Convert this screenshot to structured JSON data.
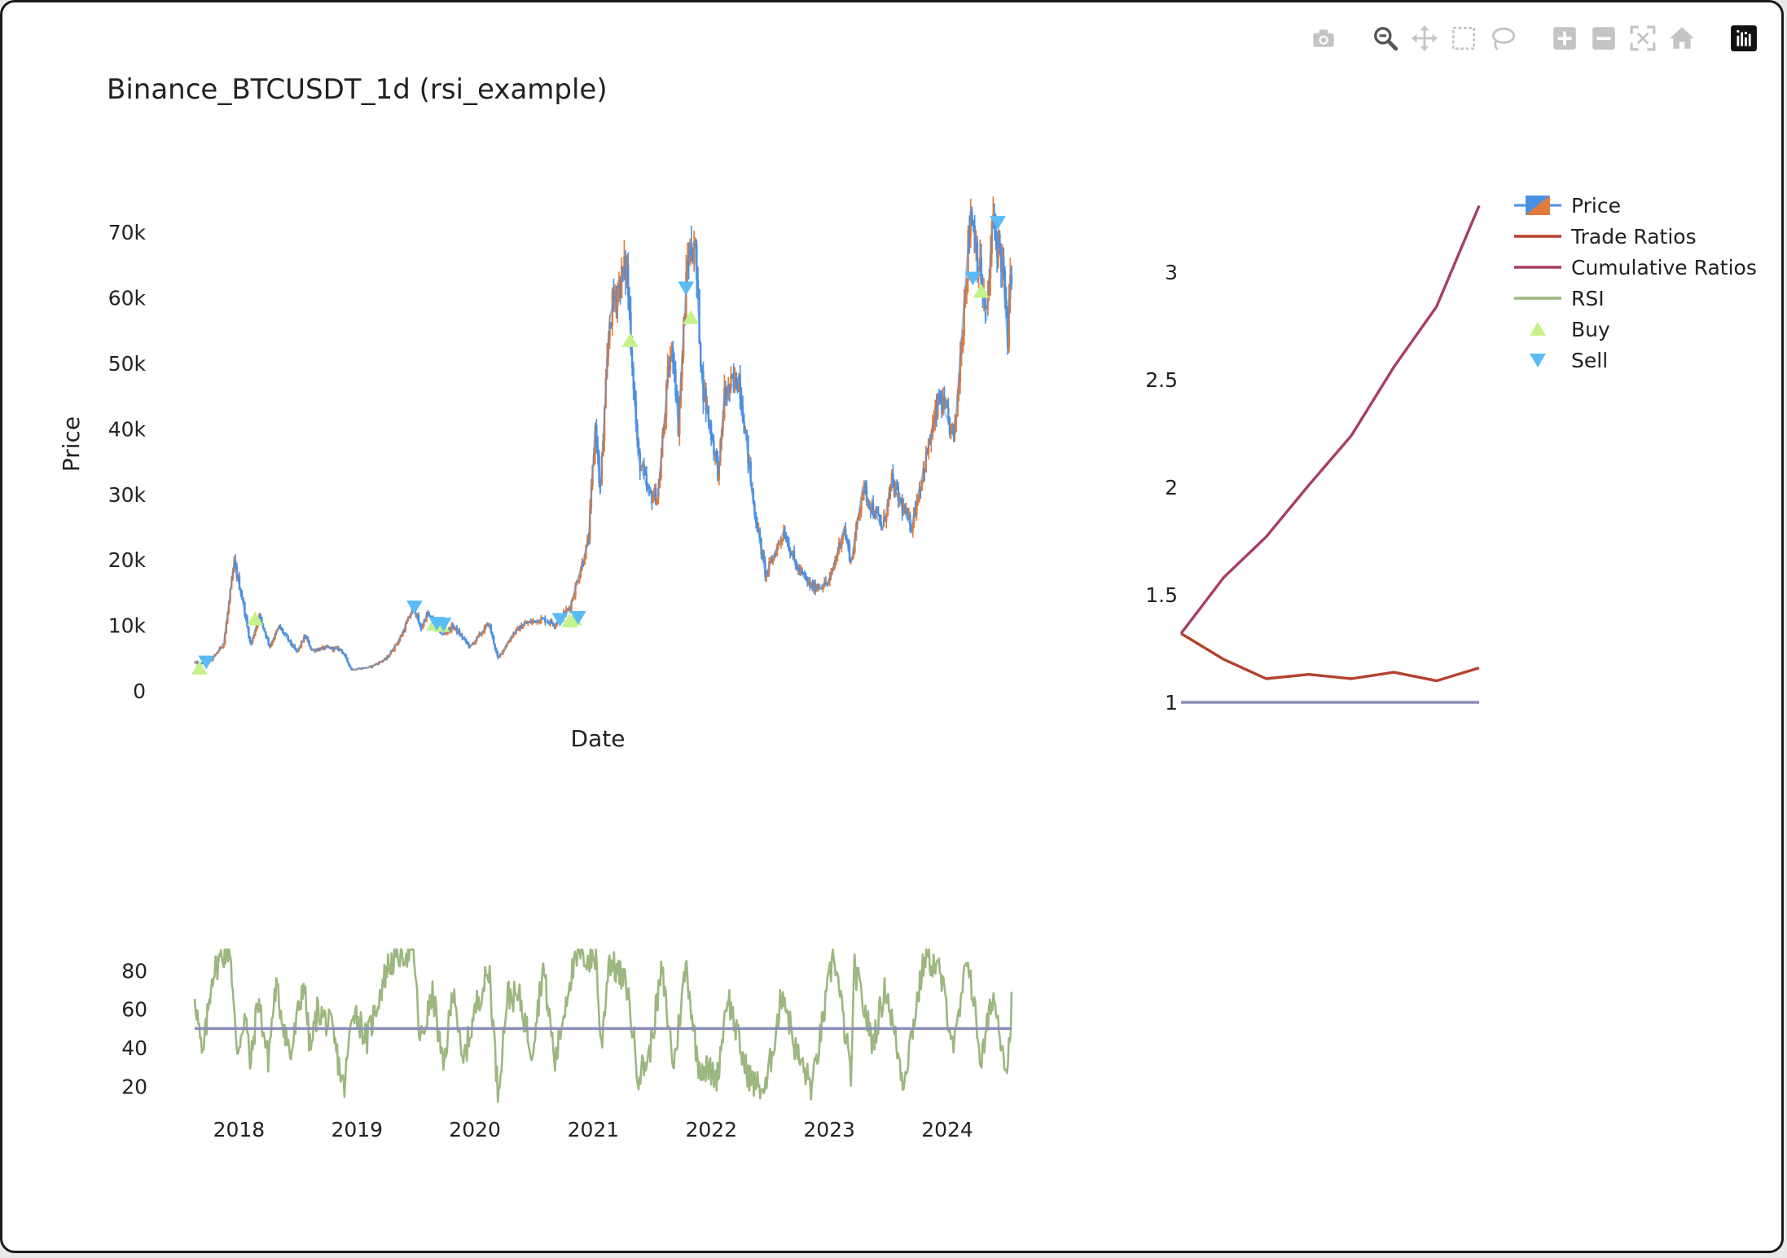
{
  "modebar": {
    "buttons": [
      {
        "name": "camera-icon",
        "title": "Download plot as a png"
      },
      {
        "name": "zoom-icon",
        "title": "Zoom"
      },
      {
        "name": "pan-icon",
        "title": "Pan"
      },
      {
        "name": "box-select-icon",
        "title": "Box Select"
      },
      {
        "name": "lasso-select-icon",
        "title": "Lasso Select"
      },
      {
        "name": "zoom-in-icon",
        "title": "Zoom in"
      },
      {
        "name": "zoom-out-icon",
        "title": "Zoom out"
      },
      {
        "name": "autoscale-icon",
        "title": "Autoscale"
      },
      {
        "name": "reset-axes-icon",
        "title": "Reset axes"
      },
      {
        "name": "plotly-logo-icon",
        "title": "Produced with Plotly"
      }
    ],
    "active": "zoom-icon"
  },
  "colors": {
    "price_up": "#e07b39",
    "price_down": "#4a90e2",
    "trade_ratios": "#b5412e",
    "cumulative_ratios": "#a83e63",
    "rsi": "#9cb77f",
    "rsi_midline": "#8a8fb8",
    "ratio_baseline": "#8a8fb8",
    "buy": "#c5f28b",
    "sell": "#5bbcf5"
  },
  "chart_data": [
    {
      "type": "candlestick",
      "id": "price",
      "title": "Binance_BTCUSDT_1d (rsi_example)",
      "xlabel": "Date",
      "ylabel": "Price",
      "xlim": [
        "2017-08-17",
        "2024-07-18"
      ],
      "ylim": [
        0,
        74000
      ],
      "yticks": [
        0,
        10000,
        20000,
        30000,
        40000,
        50000,
        60000,
        70000
      ],
      "ytick_labels": [
        "0",
        "10k",
        "20k",
        "30k",
        "40k",
        "50k",
        "60k",
        "70k"
      ],
      "series": [
        {
          "name": "Price",
          "kind": "candlestick",
          "points": [
            [
              "2017-08-17",
              4300
            ],
            [
              "2017-09-10",
              4200
            ],
            [
              "2017-10-10",
              4800
            ],
            [
              "2017-11-15",
              7300
            ],
            [
              "2017-12-17",
              19500
            ],
            [
              "2018-01-10",
              14500
            ],
            [
              "2018-02-06",
              6900
            ],
            [
              "2018-03-05",
              11500
            ],
            [
              "2018-04-06",
              6800
            ],
            [
              "2018-05-05",
              9800
            ],
            [
              "2018-06-29",
              5900
            ],
            [
              "2018-07-25",
              8400
            ],
            [
              "2018-08-14",
              6200
            ],
            [
              "2018-09-30",
              6600
            ],
            [
              "2018-11-14",
              6300
            ],
            [
              "2018-12-15",
              3250
            ],
            [
              "2019-02-08",
              3600
            ],
            [
              "2019-04-02",
              4900
            ],
            [
              "2019-05-14",
              8000
            ],
            [
              "2019-06-26",
              12900
            ],
            [
              "2019-07-17",
              9400
            ],
            [
              "2019-08-06",
              11800
            ],
            [
              "2019-09-24",
              8500
            ],
            [
              "2019-10-25",
              9900
            ],
            [
              "2019-12-17",
              6700
            ],
            [
              "2020-02-13",
              10300
            ],
            [
              "2020-03-12",
              4900
            ],
            [
              "2020-04-29",
              8800
            ],
            [
              "2020-06-01",
              10200
            ],
            [
              "2020-07-27",
              11000
            ],
            [
              "2020-09-05",
              10200
            ],
            [
              "2020-10-21",
              12800
            ],
            [
              "2020-11-25",
              19000
            ],
            [
              "2020-12-17",
              23000
            ],
            [
              "2021-01-08",
              41000
            ],
            [
              "2021-01-22",
              30000
            ],
            [
              "2021-02-21",
              57000
            ],
            [
              "2021-03-13",
              61000
            ],
            [
              "2021-04-14",
              64800
            ],
            [
              "2021-05-19",
              36000
            ],
            [
              "2021-06-22",
              29800
            ],
            [
              "2021-07-20",
              29800
            ],
            [
              "2021-08-23",
              49800
            ],
            [
              "2021-09-06",
              52000
            ],
            [
              "2021-09-21",
              40500
            ],
            [
              "2021-10-20",
              66000
            ],
            [
              "2021-11-10",
              68800
            ],
            [
              "2021-12-04",
              47000
            ],
            [
              "2022-01-24",
              33000
            ],
            [
              "2022-02-10",
              45000
            ],
            [
              "2022-03-28",
              48000
            ],
            [
              "2022-05-10",
              29000
            ],
            [
              "2022-06-18",
              17600
            ],
            [
              "2022-08-14",
              24500
            ],
            [
              "2022-09-20",
              19000
            ],
            [
              "2022-11-09",
              15700
            ],
            [
              "2022-12-31",
              16500
            ],
            [
              "2023-02-15",
              24800
            ],
            [
              "2023-03-10",
              19600
            ],
            [
              "2023-04-14",
              31000
            ],
            [
              "2023-06-15",
              24800
            ],
            [
              "2023-07-13",
              31800
            ],
            [
              "2023-09-11",
              25000
            ],
            [
              "2023-10-24",
              34800
            ],
            [
              "2023-12-08",
              44700
            ],
            [
              "2024-01-23",
              38500
            ],
            [
              "2024-03-14",
              73800
            ],
            [
              "2024-05-01",
              56500
            ],
            [
              "2024-05-21",
              71900
            ],
            [
              "2024-06-20",
              65000
            ],
            [
              "2024-07-05",
              53500
            ],
            [
              "2024-07-18",
              65000
            ]
          ]
        },
        {
          "name": "Buy",
          "kind": "marker-up",
          "points": [
            [
              "2017-09-01",
              3500
            ],
            [
              "2018-02-20",
              11000
            ],
            [
              "2019-08-28",
              10200
            ],
            [
              "2019-09-20",
              10000
            ],
            [
              "2020-10-20",
              10700
            ],
            [
              "2020-11-03",
              11000
            ],
            [
              "2021-04-25",
              53500
            ],
            [
              "2021-10-30",
              57000
            ],
            [
              "2024-04-15",
              61000
            ]
          ]
        },
        {
          "name": "Sell",
          "kind": "marker-down",
          "points": [
            [
              "2017-09-22",
              4400
            ],
            [
              "2019-06-28",
              12800
            ],
            [
              "2019-09-05",
              10300
            ],
            [
              "2019-09-26",
              10200
            ],
            [
              "2020-09-20",
              10900
            ],
            [
              "2020-11-15",
              11200
            ],
            [
              "2021-10-15",
              61500
            ],
            [
              "2024-03-20",
              63000
            ],
            [
              "2024-06-05",
              71500
            ]
          ]
        }
      ]
    },
    {
      "type": "line",
      "id": "ratios",
      "ylim": [
        1.0,
        3.3
      ],
      "yticks": [
        1,
        1.5,
        2,
        2.5,
        3
      ],
      "ytick_labels": [
        "1",
        "1.5",
        "2",
        "2.5",
        "3"
      ],
      "x": [
        0,
        1,
        2,
        3,
        4,
        5,
        6,
        7
      ],
      "series": [
        {
          "name": "Trade Ratios",
          "values": [
            1.32,
            1.2,
            1.11,
            1.13,
            1.11,
            1.14,
            1.1,
            1.16
          ]
        },
        {
          "name": "Cumulative Ratios",
          "values": [
            1.32,
            1.58,
            1.77,
            2.01,
            2.24,
            2.56,
            2.84,
            3.31
          ]
        },
        {
          "name": "Baseline",
          "values": [
            1,
            1,
            1,
            1,
            1,
            1,
            1,
            1
          ]
        }
      ]
    },
    {
      "type": "line",
      "id": "rsi",
      "ylim": [
        10,
        92
      ],
      "yticks": [
        20,
        40,
        60,
        80
      ],
      "ytick_labels": [
        "20",
        "40",
        "60",
        "80"
      ],
      "xticks": [
        "2018",
        "2019",
        "2020",
        "2021",
        "2022",
        "2023",
        "2024"
      ],
      "midline": 50,
      "series": [
        {
          "name": "RSI",
          "points": [
            [
              "2017-08-17",
              69
            ],
            [
              "2017-09-10",
              33
            ],
            [
              "2017-10-10",
              78
            ],
            [
              "2017-11-10",
              88
            ],
            [
              "2017-12-05",
              92
            ],
            [
              "2017-12-25",
              36
            ],
            [
              "2018-01-20",
              58
            ],
            [
              "2018-02-06",
              30
            ],
            [
              "2018-03-01",
              66
            ],
            [
              "2018-04-01",
              34
            ],
            [
              "2018-04-25",
              72
            ],
            [
              "2018-06-10",
              35
            ],
            [
              "2018-07-20",
              75
            ],
            [
              "2018-08-10",
              38
            ],
            [
              "2018-09-01",
              60
            ],
            [
              "2018-10-15",
              50
            ],
            [
              "2018-11-22",
              18
            ],
            [
              "2018-12-20",
              62
            ],
            [
              "2019-02-01",
              44
            ],
            [
              "2019-04-05",
              82
            ],
            [
              "2019-05-15",
              89
            ],
            [
              "2019-06-26",
              90
            ],
            [
              "2019-07-15",
              42
            ],
            [
              "2019-08-25",
              68
            ],
            [
              "2019-09-25",
              28
            ],
            [
              "2019-10-28",
              74
            ],
            [
              "2019-11-22",
              30
            ],
            [
              "2020-01-10",
              65
            ],
            [
              "2020-02-15",
              80
            ],
            [
              "2020-03-12",
              16
            ],
            [
              "2020-04-10",
              68
            ],
            [
              "2020-05-20",
              65
            ],
            [
              "2020-06-25",
              38
            ],
            [
              "2020-07-30",
              82
            ],
            [
              "2020-09-05",
              32
            ],
            [
              "2020-10-20",
              76
            ],
            [
              "2020-11-22",
              89
            ],
            [
              "2020-12-20",
              85
            ],
            [
              "2021-01-10",
              88
            ],
            [
              "2021-01-25",
              38
            ],
            [
              "2021-02-18",
              86
            ],
            [
              "2021-04-15",
              72
            ],
            [
              "2021-05-20",
              26
            ],
            [
              "2021-06-22",
              35
            ],
            [
              "2021-08-01",
              80
            ],
            [
              "2021-09-07",
              30
            ],
            [
              "2021-10-15",
              84
            ],
            [
              "2021-11-20",
              32
            ],
            [
              "2022-01-20",
              25
            ],
            [
              "2022-02-20",
              68
            ],
            [
              "2022-04-15",
              30
            ],
            [
              "2022-05-10",
              22
            ],
            [
              "2022-06-18",
              18
            ],
            [
              "2022-08-10",
              70
            ],
            [
              "2022-09-20",
              38
            ],
            [
              "2022-11-09",
              19
            ],
            [
              "2023-01-15",
              90
            ],
            [
              "2023-03-10",
              25
            ],
            [
              "2023-03-20",
              82
            ],
            [
              "2023-05-15",
              42
            ],
            [
              "2023-06-25",
              72
            ],
            [
              "2023-08-18",
              22
            ],
            [
              "2023-10-24",
              88
            ],
            [
              "2023-12-08",
              80
            ],
            [
              "2024-01-23",
              40
            ],
            [
              "2024-03-05",
              88
            ],
            [
              "2024-04-15",
              32
            ],
            [
              "2024-05-21",
              68
            ],
            [
              "2024-07-05",
              28
            ],
            [
              "2024-07-18",
              63
            ]
          ]
        }
      ]
    }
  ],
  "legend": {
    "items": [
      {
        "label": "Price",
        "symbol": "candle"
      },
      {
        "label": "Trade Ratios",
        "symbol": "line-trade"
      },
      {
        "label": "Cumulative Ratios",
        "symbol": "line-cumulative"
      },
      {
        "label": "RSI",
        "symbol": "line-rsi"
      },
      {
        "label": "Buy",
        "symbol": "triangle-up"
      },
      {
        "label": "Sell",
        "symbol": "triangle-down"
      }
    ]
  }
}
